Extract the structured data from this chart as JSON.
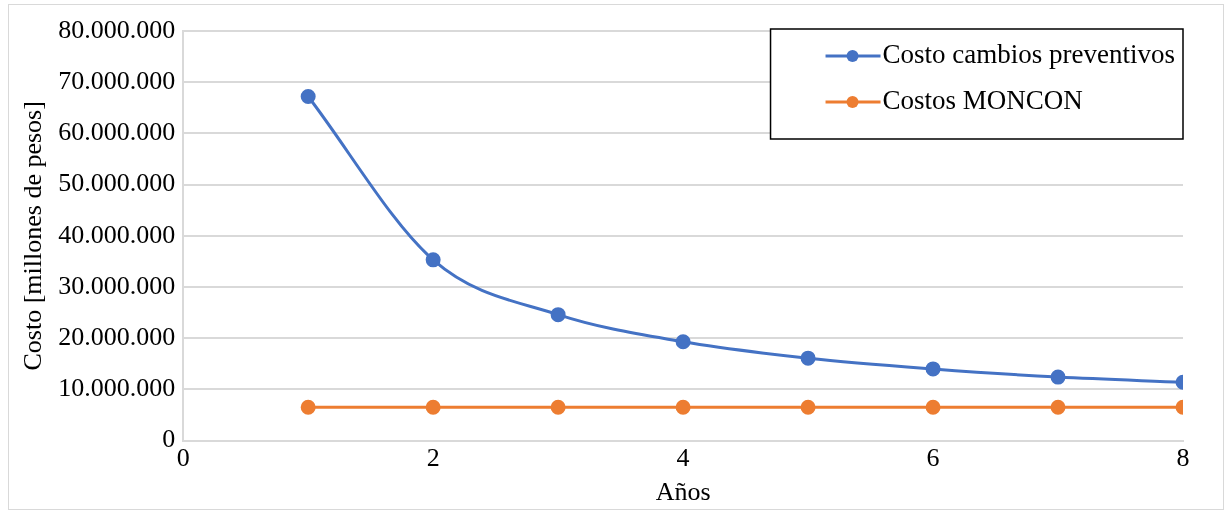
{
  "chart_data": {
    "type": "line",
    "xlabel": "Años",
    "ylabel": "Costo [millones de pesos]",
    "x": [
      1,
      2,
      3,
      4,
      5,
      6,
      7,
      8
    ],
    "series": [
      {
        "name": "Costo cambios preventivos",
        "color": "#4472c4",
        "values": [
          67200000,
          35300000,
          24600000,
          19300000,
          16100000,
          14000000,
          12400000,
          11400000
        ]
      },
      {
        "name": "Costos MONCON",
        "color": "#ed7d31",
        "values": [
          6500000,
          6500000,
          6500000,
          6500000,
          6500000,
          6500000,
          6500000,
          6500000
        ]
      }
    ],
    "xlim": [
      0,
      8
    ],
    "xticks": [
      0,
      2,
      4,
      6,
      8
    ],
    "ylim": [
      0,
      80000000
    ],
    "yticks": [
      {
        "value": 0,
        "label": "0"
      },
      {
        "value": 10000000,
        "label": "10.000.000"
      },
      {
        "value": 20000000,
        "label": "20.000.000"
      },
      {
        "value": 30000000,
        "label": "30.000.000"
      },
      {
        "value": 40000000,
        "label": "40.000.000"
      },
      {
        "value": 50000000,
        "label": "50.000.000"
      },
      {
        "value": 60000000,
        "label": "60.000.000"
      },
      {
        "value": 70000000,
        "label": "70.000.000"
      },
      {
        "value": 80000000,
        "label": "80.000.000"
      }
    ],
    "grid": "y",
    "legend": "top right",
    "marker": "circle",
    "line_style": "solid"
  }
}
